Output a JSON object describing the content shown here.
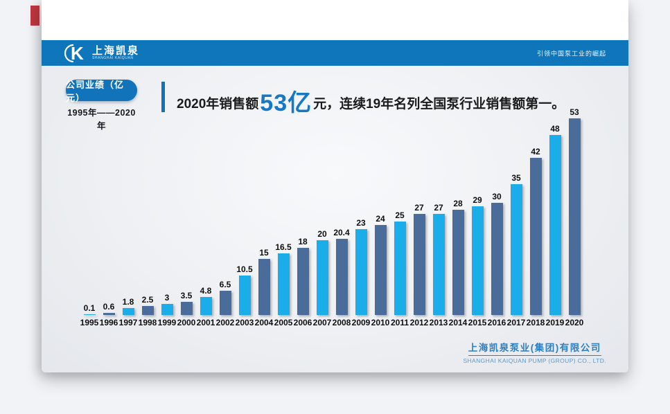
{
  "header": {
    "logo_text": "上海凯泉",
    "logo_subtext": "SHANGHAI KAIQUAN",
    "slogan": "引领中国泵工业的崛起"
  },
  "intro": {
    "badge": "公司业绩（亿元）",
    "period": "1995年——2020年",
    "headline_prefix": "2020年销售额",
    "headline_highlight": "53亿",
    "headline_suffix": "元，连续19年名列全国泵行业销售额第一。"
  },
  "chart_data": {
    "type": "bar",
    "title": "公司业绩（亿元）",
    "subtitle": "1995年——2020年",
    "categories": [
      "1995",
      "1996",
      "1997",
      "1998",
      "1999",
      "2000",
      "2001",
      "2002",
      "2003",
      "2004",
      "2005",
      "2006",
      "2007",
      "2008",
      "2009",
      "2010",
      "2011",
      "2012",
      "2013",
      "2014",
      "2015",
      "2016",
      "2017",
      "2018",
      "2019",
      "2020"
    ],
    "values": [
      0.1,
      0.6,
      1.8,
      2.5,
      3,
      3.5,
      4.8,
      6.5,
      10.5,
      15,
      16.5,
      18,
      20,
      20.4,
      23,
      24,
      25,
      27,
      27,
      28,
      29,
      30,
      35,
      42,
      48,
      53
    ],
    "labels": [
      "0.1",
      "0.6",
      "1.8",
      "2.5",
      "3",
      "3.5",
      "4.8",
      "6.5",
      "10.5",
      "15",
      "16.5",
      "18",
      "20",
      "20.4",
      "23",
      "24",
      "25",
      "27",
      "27",
      "28",
      "29",
      "30",
      "35",
      "42",
      "48",
      "53"
    ],
    "ylim": [
      0,
      53
    ],
    "xlabel": "",
    "ylabel": "亿元",
    "grid": "off",
    "legend": "none",
    "colors": {
      "light": "#1badea",
      "dark": "#4a6c9b"
    },
    "color_pattern": "even-index light blue, odd-index dark slate blue"
  },
  "footer": {
    "company_cn": "上海凯泉泵业(集团)有限公司",
    "company_en": "SHANGHAI KAIQUAN PUMP (GROUP) CO., LTD."
  },
  "colors": {
    "header_blue": "#0f76bb",
    "badge_blue": "#1173b9",
    "highlight_blue": "#1779c5",
    "bar_light": "#1badea",
    "bar_dark": "#4a6c9b",
    "footer_blue": "#2e7fc2",
    "page_bg": "#f2f3f6",
    "red_marker": "#c2353f"
  }
}
